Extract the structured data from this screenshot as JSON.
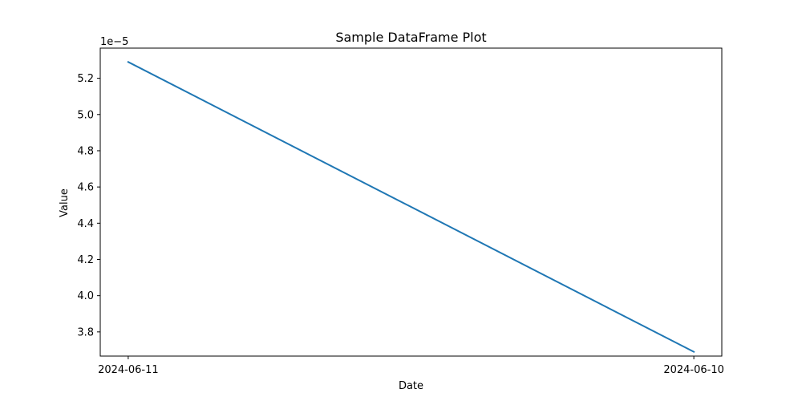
{
  "chart_data": {
    "type": "line",
    "title": "Sample DataFrame Plot",
    "xlabel": "Date",
    "ylabel": "Value",
    "offset_label": "1e−5",
    "x_tick_labels": [
      "2024-06-11",
      "2024-06-10"
    ],
    "y_scale_factor": 1e-05,
    "ylim": [
      3.6665e-05,
      5.3665e-05
    ],
    "y_ticks": [
      3.8e-05,
      4e-05,
      4.2e-05,
      4.4e-05,
      4.6e-05,
      4.8e-05,
      5e-05,
      5.2e-05
    ],
    "y_tick_labels": [
      "3.8",
      "4.0",
      "4.2",
      "4.4",
      "4.6",
      "4.8",
      "5.0",
      "5.2"
    ],
    "grid": false,
    "legend": false,
    "series": [
      {
        "color": "#1f77b4",
        "points": [
          {
            "x": "2024-06-11",
            "y": 5.29e-05
          },
          {
            "x": "2024-06-10",
            "y": 3.69e-05
          }
        ]
      }
    ]
  }
}
